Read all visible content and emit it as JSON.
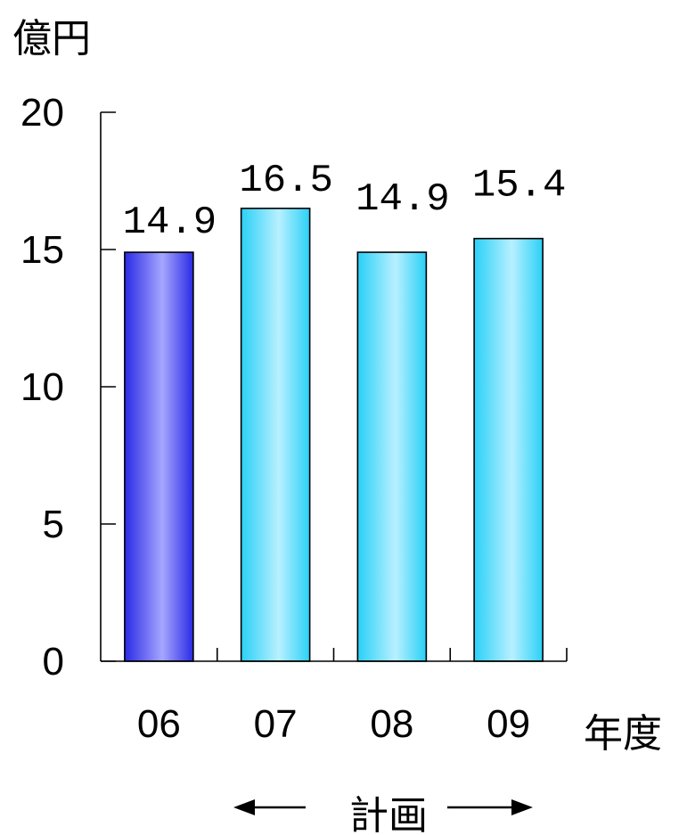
{
  "chart_data": {
    "type": "bar",
    "y_unit": "億円",
    "x_unit": "年度",
    "categories": [
      "06",
      "07",
      "08",
      "09"
    ],
    "values": [
      14.9,
      16.5,
      14.9,
      15.4
    ],
    "value_labels": [
      "14.9",
      "16.5",
      "14.9",
      "15.4"
    ],
    "ylim": [
      0,
      20
    ],
    "yticks": [
      "0",
      "5",
      "10",
      "15",
      "20"
    ],
    "grid": false,
    "plan_label": "計画",
    "colors": {
      "actual": [
        "#2a2ae6",
        "#a6a6ff"
      ],
      "plan": [
        "#2ad0f7",
        "#b8f0ff"
      ]
    },
    "bar_kinds": [
      "actual",
      "plan",
      "plan",
      "plan"
    ]
  }
}
